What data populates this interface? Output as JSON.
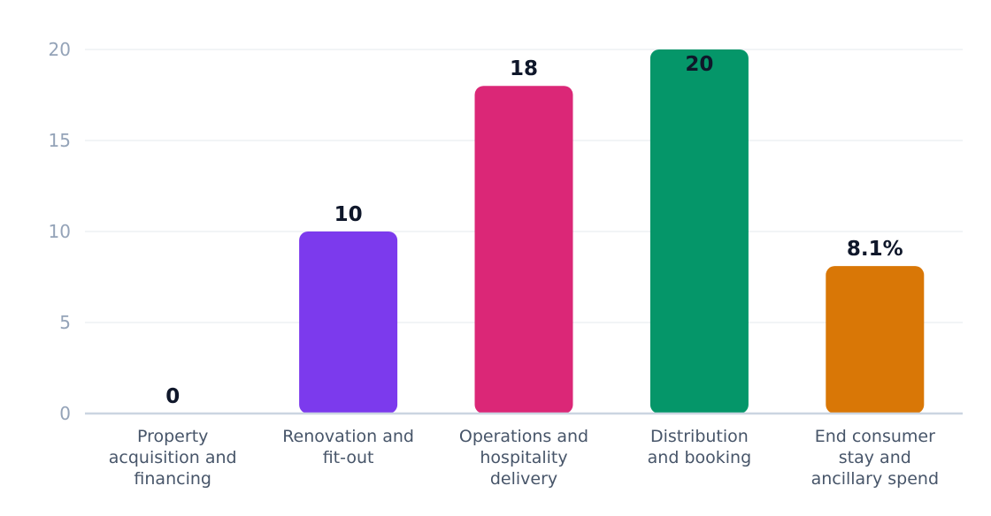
{
  "chart_data": {
    "type": "bar",
    "categories": [
      [
        "Property",
        "acquisition and",
        "financing"
      ],
      [
        "Renovation and",
        "fit-out"
      ],
      [
        "Operations and",
        "hospitality",
        "delivery"
      ],
      [
        "Distribution",
        "and booking"
      ],
      [
        "End consumer",
        "stay and",
        "ancillary spend"
      ]
    ],
    "values": [
      0,
      10,
      18,
      20,
      8.1
    ],
    "data_labels": [
      "0",
      "10",
      "18",
      "20",
      "8.1%"
    ],
    "colors": [
      "#7c3aed",
      "#7c3aed",
      "#db2777",
      "#059669",
      "#d97706"
    ],
    "ylim": [
      0,
      20
    ],
    "yticks": [
      0,
      5,
      10,
      15,
      20
    ],
    "grid": true,
    "title": "",
    "xlabel": "",
    "ylabel": ""
  }
}
